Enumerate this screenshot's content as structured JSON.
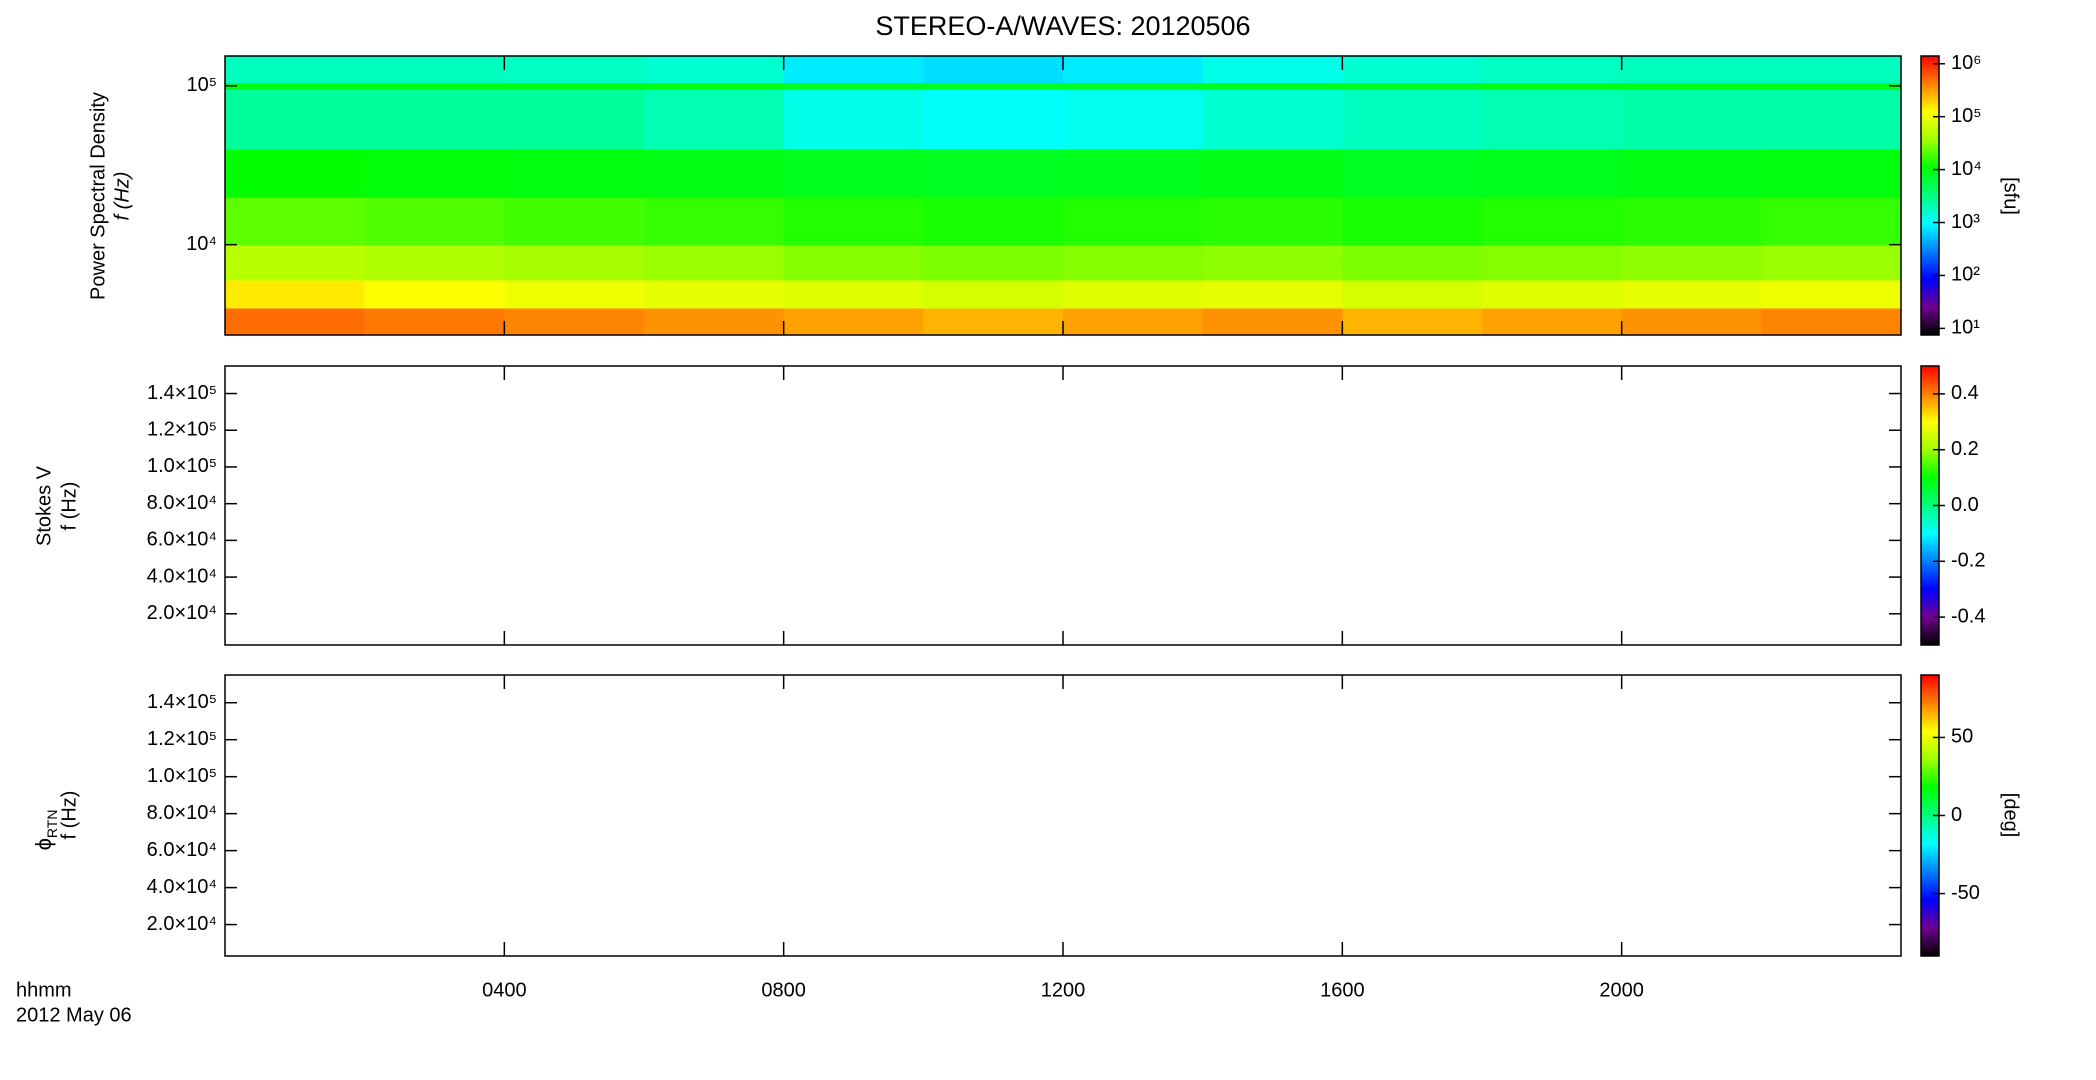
{
  "chart_data": [
    {
      "type": "heatmap",
      "title": "STEREO-A/WAVES: 20120506",
      "ylabel": [
        "Power Spectral Density",
        "f (Hz)"
      ],
      "yscale": "log",
      "ylim": [
        2700,
        154000
      ],
      "yticks": [
        {
          "value": 10000,
          "label": "10⁴"
        },
        {
          "value": 100000,
          "label": "10⁵"
        }
      ],
      "x_bins": [
        0,
        2,
        4,
        6,
        8,
        10,
        12,
        14,
        16,
        18,
        20,
        22,
        24
      ],
      "y_bins": [
        2700,
        4000,
        6000,
        10000,
        20000,
        40000,
        95000,
        105000,
        154000
      ],
      "values": [
        [
          500000,
          450000,
          400000,
          350000,
          300000,
          250000,
          300000,
          350000,
          250000,
          300000,
          350000,
          400000
        ],
        [
          150000,
          120000,
          100000,
          90000,
          80000,
          70000,
          80000,
          90000,
          70000,
          80000,
          90000,
          100000
        ],
        [
          50000,
          45000,
          40000,
          35000,
          30000,
          28000,
          30000,
          32000,
          28000,
          30000,
          32000,
          35000
        ],
        [
          22000,
          20000,
          18000,
          16000,
          14000,
          13000,
          14000,
          15000,
          13000,
          14000,
          15000,
          16000
        ],
        [
          11000,
          10000,
          9500,
          9000,
          8500,
          8000,
          8500,
          9000,
          8000,
          8500,
          9000,
          9500
        ],
        [
          2500,
          2500,
          2500,
          2000,
          1200,
          1000,
          1100,
          1500,
          1800,
          2000,
          2200,
          2200
        ],
        [
          9000,
          9000,
          9000,
          9000,
          8000,
          8000,
          8000,
          8000,
          8000,
          9000,
          9000,
          9000
        ],
        [
          1800,
          1800,
          1700,
          1500,
          800,
          700,
          800,
          1200,
          1500,
          1700,
          1800,
          1800
        ]
      ],
      "zscale": "log",
      "zlim": [
        7.5,
        1400000
      ],
      "zticks": [
        {
          "value": 10,
          "label": "10¹"
        },
        {
          "value": 100,
          "label": "10²"
        },
        {
          "value": 1000,
          "label": "10³"
        },
        {
          "value": 10000,
          "label": "10⁴"
        },
        {
          "value": 100000,
          "label": "10⁵"
        },
        {
          "value": 1000000,
          "label": "10⁶"
        }
      ],
      "zlabel": "[sfu]"
    },
    {
      "type": "heatmap",
      "ylabel": [
        "Stokes V",
        "f (Hz)"
      ],
      "yscale": "linear",
      "ylim": [
        3000,
        155000
      ],
      "yticks": [
        {
          "value": 20000,
          "label": "2.0×10⁴"
        },
        {
          "value": 40000,
          "label": "4.0×10⁴"
        },
        {
          "value": 60000,
          "label": "6.0×10⁴"
        },
        {
          "value": 80000,
          "label": "8.0×10⁴"
        },
        {
          "value": 100000,
          "label": "1.0×10⁵"
        },
        {
          "value": 120000,
          "label": "1.2×10⁵"
        },
        {
          "value": 140000,
          "label": "1.4×10⁵"
        }
      ],
      "zscale": "linear",
      "zlim": [
        -0.5,
        0.5
      ],
      "zticks": [
        -0.4,
        -0.2,
        {
          "value": 0,
          "label": "0.0"
        },
        0.2,
        0.4
      ]
    },
    {
      "type": "heatmap",
      "ylabel": [
        "ϕ",
        "RTN",
        "f (Hz)"
      ],
      "yscale": "linear",
      "ylim": [
        3000,
        155000
      ],
      "yticks": [
        {
          "value": 20000,
          "label": "2.0×10⁴"
        },
        {
          "value": 40000,
          "label": "4.0×10⁴"
        },
        {
          "value": 60000,
          "label": "6.0×10⁴"
        },
        {
          "value": 80000,
          "label": "8.0×10⁴"
        },
        {
          "value": 100000,
          "label": "1.0×10⁵"
        },
        {
          "value": 120000,
          "label": "1.2×10⁵"
        },
        {
          "value": 140000,
          "label": "1.4×10⁵"
        }
      ],
      "zscale": "linear",
      "zlim": [
        -90,
        90
      ],
      "zticks": [
        -50,
        0,
        50
      ],
      "zlabel": "[deg]",
      "xlim": [
        0,
        24
      ],
      "xticks": [
        {
          "value": 4,
          "label": "0400"
        },
        {
          "value": 8,
          "label": "0800"
        },
        {
          "value": 12,
          "label": "1200"
        },
        {
          "value": 16,
          "label": "1600"
        },
        {
          "value": 20,
          "label": "2000"
        }
      ],
      "xlabel": "hhmm",
      "xlabel2": "2012 May 06",
      "colormap": [
        "#000000",
        "#700090",
        "#0000ff",
        "#0080ff",
        "#00ffff",
        "#00ff80",
        "#00ff00",
        "#a0ff00",
        "#ffff00",
        "#ff8000",
        "#ff0000"
      ]
    }
  ]
}
